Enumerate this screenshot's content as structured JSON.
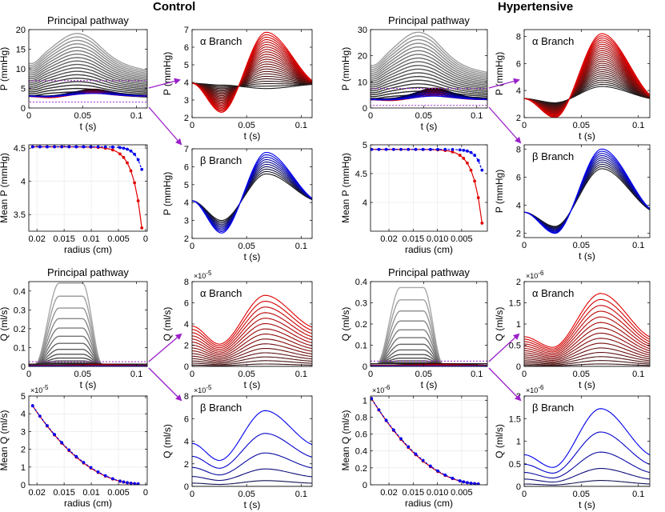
{
  "titles": {
    "control": "Control",
    "hypertensive": "Hypertensive"
  },
  "colors": {
    "red": "#e00000",
    "blue": "#0000ee",
    "purple": "#9a20c8",
    "grey": "#8c8c8c",
    "dark": "#151515"
  },
  "chart_data": [
    {
      "id": "c-pp-p",
      "type": "line",
      "title": "Principal pathway",
      "xlabel": "t (s)",
      "ylabel": "P (mmHg)",
      "xlim": [
        0,
        0.11
      ],
      "ylim": [
        0,
        20
      ],
      "xticks": [
        0,
        0.05,
        0.1
      ],
      "yticks": [
        0,
        5,
        10,
        15,
        20
      ],
      "family": "pressure-principal",
      "n_grey": 18,
      "n_color": 6,
      "grey_base": [
        12,
        3.5
      ],
      "grey_amp": [
        7,
        0.6
      ],
      "color_base": [
        3.2,
        3.0
      ],
      "color_amp": [
        1.6,
        0.8
      ],
      "zoom_box_y": [
        1.5,
        7
      ]
    },
    {
      "id": "c-alpha-p",
      "type": "line",
      "title": "α Branch",
      "xlabel": "t (s)",
      "ylabel": "P (mmHg)",
      "xlim": [
        0,
        0.11
      ],
      "ylim": [
        2,
        7
      ],
      "xticks": [
        0,
        0.05,
        0.1
      ],
      "yticks": [
        2,
        3,
        4,
        5,
        6,
        7
      ],
      "family": "pressure-branch",
      "color": "red",
      "n": 24,
      "base": 3.95,
      "trough": [
        3.85,
        2.3
      ],
      "peak": [
        3.65,
        6.85
      ]
    },
    {
      "id": "c-mean-p",
      "type": "line",
      "title": "",
      "xlabel": "radius (cm)",
      "ylabel": "Mean P (mmHg)",
      "xlim": [
        0.0215,
        -0.0003
      ],
      "ylim": [
        3.25,
        4.55
      ],
      "xticks": [
        0.02,
        0.015,
        0.01,
        0.005,
        0
      ],
      "xticklabels": [
        "0.02",
        "0.015",
        "0.01",
        "0.005",
        "0"
      ],
      "yticks": [
        3.5,
        4,
        4.5
      ],
      "series": [
        {
          "name": "α",
          "color": "red",
          "dashed": false,
          "r0": 0.0208,
          "r1": 0.0007,
          "y0": 4.52,
          "y1": 3.3,
          "k": 0.00165
        },
        {
          "name": "β",
          "color": "blue",
          "dashed": true,
          "r0": 0.0208,
          "r1": 0.0007,
          "y0": 4.52,
          "y1": 4.18,
          "k": 0.0012
        }
      ]
    },
    {
      "id": "c-beta-p",
      "type": "line",
      "title": "β Branch",
      "xlabel": "t (s)",
      "ylabel": "P (mmHg)",
      "xlim": [
        0,
        0.11
      ],
      "ylim": [
        2,
        7
      ],
      "xticks": [
        0,
        0.05,
        0.1
      ],
      "yticks": [
        2,
        3,
        4,
        5,
        6,
        7
      ],
      "family": "pressure-branch",
      "color": "blue",
      "n": 10,
      "base": 4.1,
      "trough": [
        3.0,
        2.3
      ],
      "peak": [
        5.6,
        6.8
      ]
    },
    {
      "id": "c-pp-q",
      "type": "line",
      "title": "Principal pathway",
      "xlabel": "t (s)",
      "ylabel": "Q (ml/s)",
      "xlim": [
        0,
        0.11
      ],
      "ylim": [
        0,
        0.45
      ],
      "xticks": [
        0,
        0.05,
        0.1
      ],
      "yticks": [
        0,
        0.1,
        0.2,
        0.3,
        0.4
      ],
      "family": "flow-principal",
      "n_grey": 14,
      "top_peak": 0.43,
      "zoom_box_y": [
        0,
        0.025
      ]
    },
    {
      "id": "c-alpha-q",
      "type": "line",
      "title": "α Branch",
      "xlabel": "t (s)",
      "ylabel": "Q (ml/s)",
      "xlim": [
        0,
        0.11
      ],
      "ylim": [
        0,
        8e-05
      ],
      "xticks": [
        0,
        0.05,
        0.1
      ],
      "yticks": [
        0,
        2e-05,
        4e-05,
        6e-05,
        8e-05
      ],
      "yticklabels": [
        "0",
        "2",
        "4",
        "6",
        "8"
      ],
      "exponent": "×10",
      "exponent_power": "-5",
      "family": "flow-branch",
      "color": "red",
      "n": 16,
      "peak": 6.7e-05,
      "start": 3.8e-05,
      "min": 2.1e-05
    },
    {
      "id": "c-mean-q",
      "type": "line",
      "title": "",
      "xlabel": "radius (cm)",
      "ylabel": "Mean Q (ml/s)",
      "xlim": [
        0.0215,
        -0.0003
      ],
      "ylim": [
        0,
        5e-05
      ],
      "xticks": [
        0.02,
        0.015,
        0.01,
        0.005,
        0
      ],
      "xticklabels": [
        "0.02",
        "0.015",
        "0.01",
        "0.005",
        "0"
      ],
      "yticks": [
        0,
        1e-05,
        2e-05,
        3e-05,
        4e-05,
        5e-05
      ],
      "yticklabels": [
        "0",
        "1",
        "2",
        "3",
        "4",
        "5"
      ],
      "exponent": "×10",
      "exponent_power": "-5",
      "series": [
        {
          "name": "α",
          "color": "red",
          "dashed": false,
          "r0": 0.0208,
          "r1": 0.0007,
          "y0": 4.45e-05,
          "y1": 5e-07,
          "pow": 2.1
        },
        {
          "name": "β",
          "color": "blue",
          "dashed": true,
          "r0": 0.0208,
          "r1": 0.0007,
          "y0": 4.45e-05,
          "y1": 5e-07,
          "pow": 2.05
        }
      ]
    },
    {
      "id": "c-beta-q",
      "type": "line",
      "title": "β Branch",
      "xlabel": "t (s)",
      "ylabel": "Q (ml/s)",
      "xlim": [
        0,
        0.11
      ],
      "ylim": [
        0,
        8e-05
      ],
      "xticks": [
        0,
        0.05,
        0.1
      ],
      "yticks": [
        0,
        2e-05,
        4e-05,
        6e-05,
        8e-05
      ],
      "yticklabels": [
        "0",
        "2",
        "4",
        "6",
        "8"
      ],
      "exponent": "×10",
      "exponent_power": "-5",
      "family": "flow-branch",
      "color": "blue",
      "n": 6,
      "peak": 6.7e-05,
      "start": 3.8e-05,
      "min": 2.3e-05
    },
    {
      "id": "h-pp-p",
      "type": "line",
      "title": "Principal pathway",
      "xlabel": "t (s)",
      "ylabel": "P (mmHg)",
      "xlim": [
        0,
        0.11
      ],
      "ylim": [
        0,
        30
      ],
      "xticks": [
        0,
        0.05,
        0.1
      ],
      "yticks": [
        0,
        10,
        20,
        30
      ],
      "family": "pressure-principal",
      "n_grey": 18,
      "n_color": 6,
      "grey_base": [
        17,
        4
      ],
      "grey_amp": [
        12,
        1
      ],
      "color_base": [
        3.6,
        3.2
      ],
      "color_amp": [
        4,
        1.5
      ],
      "zoom_box_y": [
        1,
        7.5
      ]
    },
    {
      "id": "h-alpha-p",
      "type": "line",
      "title": "α Branch",
      "xlabel": "t (s)",
      "ylabel": "P (mmHg)",
      "xlim": [
        0,
        0.11
      ],
      "ylim": [
        2,
        8.5
      ],
      "xticks": [
        0,
        0.05,
        0.1
      ],
      "yticks": [
        2,
        4,
        6,
        8
      ],
      "family": "pressure-branch",
      "color": "red",
      "n": 26,
      "base": 3.4,
      "trough": [
        3.1,
        2.0
      ],
      "peak": [
        4.3,
        8.2
      ]
    },
    {
      "id": "h-mean-p",
      "type": "line",
      "title": "",
      "xlabel": "radius (cm)",
      "ylabel": "Mean P (mmHg)",
      "xlim": [
        0.0238,
        -0.0003
      ],
      "ylim": [
        3.5,
        5.0
      ],
      "xticks": [
        0.02,
        0.015,
        0.01,
        0.005
      ],
      "xticklabels": [
        "0.02",
        "0.015",
        "0.010",
        "0.005"
      ],
      "yticks": [
        4,
        4.5,
        5
      ],
      "series": [
        {
          "name": "α",
          "color": "red",
          "dashed": false,
          "r0": 0.0236,
          "r1": 0.0008,
          "y0": 4.92,
          "y1": 3.64,
          "k": 0.0018
        },
        {
          "name": "β",
          "color": "blue",
          "dashed": true,
          "r0": 0.0236,
          "r1": 0.0008,
          "y0": 4.92,
          "y1": 4.56,
          "k": 0.0012
        }
      ]
    },
    {
      "id": "h-beta-p",
      "type": "line",
      "title": "β Branch",
      "xlabel": "t (s)",
      "ylabel": "P (mmHg)",
      "xlim": [
        0,
        0.11
      ],
      "ylim": [
        1.7,
        8.3
      ],
      "xticks": [
        0,
        0.05,
        0.1
      ],
      "yticks": [
        2,
        4,
        6,
        8
      ],
      "family": "pressure-branch",
      "color": "blue",
      "n": 10,
      "base": 3.5,
      "trough": [
        2.5,
        2.0
      ],
      "peak": [
        6.6,
        8.0
      ]
    },
    {
      "id": "h-pp-q",
      "type": "line",
      "title": "Principal pathway",
      "xlabel": "t (s)",
      "ylabel": "Q (ml/s)",
      "xlim": [
        0,
        0.11
      ],
      "ylim": [
        0,
        0.4
      ],
      "xticks": [
        0,
        0.05,
        0.1
      ],
      "yticks": [
        0,
        0.1,
        0.2,
        0.3,
        0.4
      ],
      "family": "flow-principal",
      "n_grey": 14,
      "top_peak": 0.36,
      "zoom_box_y": [
        0,
        0.025
      ]
    },
    {
      "id": "h-alpha-q",
      "type": "line",
      "title": "α Branch",
      "xlabel": "t (s)",
      "ylabel": "Q (ml/s)",
      "xlim": [
        0,
        0.11
      ],
      "ylim": [
        0,
        2e-06
      ],
      "xticks": [
        0,
        0.05,
        0.1
      ],
      "yticks": [
        0,
        5e-07,
        1e-06,
        1.5e-06,
        2e-06
      ],
      "yticklabels": [
        "0",
        "0.5",
        "1",
        "1.5",
        "2"
      ],
      "exponent": "×10",
      "exponent_power": "-6",
      "family": "flow-branch",
      "color": "red",
      "n": 16,
      "peak": 1.72e-06,
      "start": 7e-07,
      "min": 4.5e-07
    },
    {
      "id": "h-mean-q",
      "type": "line",
      "title": "",
      "xlabel": "radius (cm)",
      "ylabel": "Mean Q (ml/s)",
      "xlim": [
        0.0238,
        -0.0003
      ],
      "ylim": [
        0,
        1.05e-06
      ],
      "xticks": [
        0.02,
        0.015,
        0.01,
        0.005
      ],
      "xticklabels": [
        "0.02",
        "0.015",
        "0.010",
        "0.005"
      ],
      "yticks": [
        0,
        2e-07,
        4e-07,
        6e-07,
        8e-07,
        1e-06
      ],
      "yticklabels": [
        "0",
        "0.2",
        "0.4",
        "0.6",
        "0.8",
        "1"
      ],
      "exponent": "×10",
      "exponent_power": "-6",
      "series": [
        {
          "name": "α",
          "color": "red",
          "dashed": false,
          "r0": 0.0236,
          "r1": 0.0008,
          "y0": 1.02e-06,
          "y1": 1e-08,
          "pow": 2.1
        },
        {
          "name": "β",
          "color": "blue",
          "dashed": true,
          "r0": 0.0236,
          "r1": 0.0008,
          "y0": 1.02e-06,
          "y1": 1e-08,
          "pow": 2.05
        }
      ]
    },
    {
      "id": "h-beta-q",
      "type": "line",
      "title": "β Branch",
      "xlabel": "t (s)",
      "ylabel": "Q (ml/s)",
      "xlim": [
        0,
        0.11
      ],
      "ylim": [
        0,
        2e-06
      ],
      "xticks": [
        0,
        0.05,
        0.1
      ],
      "yticks": [
        0,
        5e-07,
        1e-06,
        1.5e-06,
        2e-06
      ],
      "yticklabels": [
        "0",
        "0.5",
        "1",
        "1.5",
        "2"
      ],
      "exponent": "×10",
      "exponent_power": "-6",
      "family": "flow-branch",
      "color": "blue",
      "n": 6,
      "peak": 1.72e-06,
      "start": 7e-07,
      "min": 4.2e-07
    }
  ]
}
